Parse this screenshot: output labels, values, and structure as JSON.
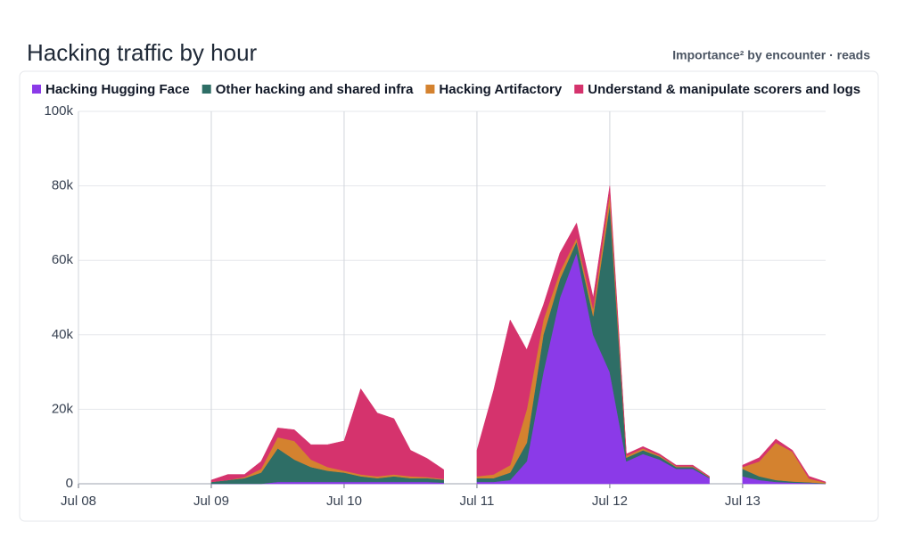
{
  "chart_data": {
    "type": "stacked-area",
    "title": "Hacking traffic by hour",
    "subtitle": "Importance² by encounter · reads",
    "x": [
      24,
      27,
      30,
      33,
      36,
      39,
      42,
      45,
      48,
      51,
      54,
      57,
      60,
      63,
      66,
      69,
      72,
      75,
      78,
      81,
      84,
      87,
      90,
      93,
      96,
      99,
      102,
      105,
      108,
      111,
      114,
      117,
      120,
      123,
      126,
      129,
      132,
      135
    ],
    "xlim": [
      0,
      135
    ],
    "xticks": [
      {
        "value": 0,
        "label": "Jul 08"
      },
      {
        "value": 24,
        "label": "Jul 09"
      },
      {
        "value": 48,
        "label": "Jul 10"
      },
      {
        "value": 72,
        "label": "Jul 11"
      },
      {
        "value": 96,
        "label": "Jul 12"
      },
      {
        "value": 120,
        "label": "Jul 13"
      }
    ],
    "ylim": [
      0,
      100000
    ],
    "yticks": [
      0,
      {
        "value": 20000,
        "label": "20k"
      },
      {
        "value": 40000,
        "label": "40k"
      },
      {
        "value": 60000,
        "label": "60k"
      },
      {
        "value": 80000,
        "label": "80k"
      },
      {
        "value": 100000,
        "label": "100k"
      }
    ],
    "grid": true,
    "series": [
      {
        "name": "Hacking Hugging Face",
        "color": "#8b3ae8",
        "values": [
          0,
          0,
          0,
          0,
          500,
          500,
          500,
          500,
          500,
          500,
          500,
          500,
          500,
          500,
          300,
          null,
          500,
          500,
          1000,
          6000,
          30000,
          50000,
          62000,
          40000,
          30000,
          6000,
          8000,
          6500,
          4000,
          4000,
          1500,
          null,
          2000,
          1000,
          500,
          300,
          200,
          0
        ]
      },
      {
        "name": "Other hacking and shared infra",
        "color": "#2e6e66",
        "values": [
          500,
          1000,
          1500,
          3000,
          9000,
          6000,
          4000,
          3000,
          2500,
          1500,
          1000,
          1500,
          1000,
          1000,
          800,
          null,
          1000,
          1000,
          2000,
          5000,
          10000,
          5000,
          3000,
          5000,
          45000,
          1000,
          1000,
          800,
          500,
          500,
          200,
          null,
          2000,
          1000,
          500,
          300,
          200,
          100
        ]
      },
      {
        "name": "Hacking Artifactory",
        "color": "#d4822f",
        "values": [
          0,
          0,
          300,
          1000,
          3000,
          5000,
          2000,
          1000,
          500,
          500,
          500,
          500,
          500,
          300,
          200,
          null,
          500,
          1000,
          2000,
          9000,
          4000,
          2000,
          1000,
          2000,
          3000,
          500,
          500,
          300,
          200,
          200,
          100,
          null,
          500,
          4000,
          10000,
          8000,
          1000,
          200
        ]
      },
      {
        "name": "Understand & manipulate scorers and logs",
        "color": "#d5336d",
        "values": [
          500,
          1500,
          700,
          2000,
          2500,
          3000,
          4000,
          6000,
          8000,
          23000,
          17000,
          15000,
          7000,
          5000,
          2500,
          null,
          7000,
          22500,
          39000,
          16000,
          4000,
          5000,
          4000,
          3000,
          2000,
          500,
          500,
          400,
          300,
          300,
          200,
          null,
          500,
          1000,
          1000,
          400,
          600,
          200
        ]
      }
    ]
  }
}
